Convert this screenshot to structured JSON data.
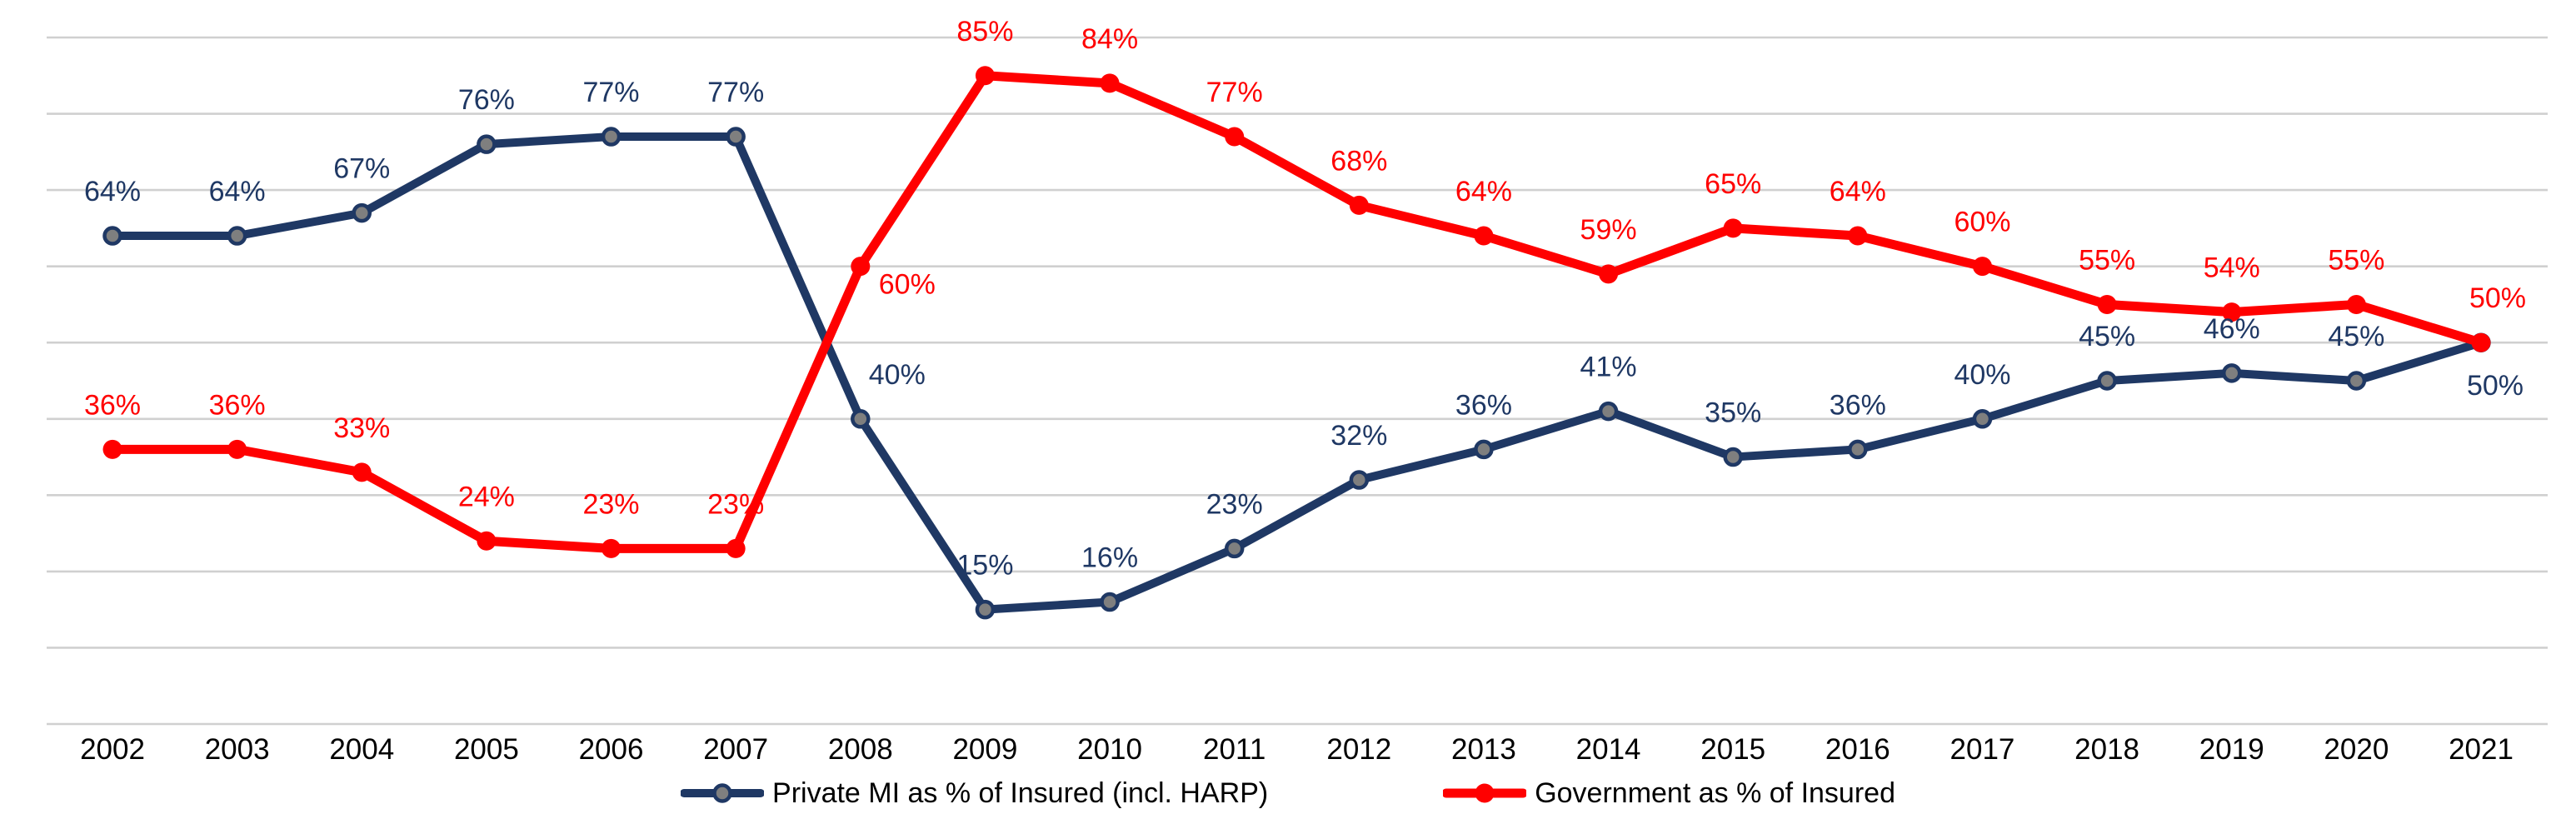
{
  "chart_data": {
    "type": "line",
    "title": "",
    "x_categories": [
      "2002",
      "2003",
      "2004",
      "2005",
      "2006",
      "2007",
      "2008",
      "2009",
      "2010",
      "2011",
      "2012",
      "2013",
      "2014",
      "2015",
      "2016",
      "2017",
      "2018",
      "2019",
      "2020",
      "2021"
    ],
    "series": [
      {
        "key": "private-mi",
        "name": "Private MI as % of Insured (incl. HARP)",
        "color": "#1F3864",
        "label_color": "#1F3864",
        "marker_fill": "#7F7F7F",
        "marker_stroke": "#1F3864",
        "values": [
          64,
          64,
          67,
          76,
          77,
          77,
          40,
          15,
          16,
          23,
          32,
          36,
          41,
          35,
          36,
          40,
          45,
          46,
          45,
          50
        ],
        "label_offsets": {
          "6": {
            "dx": 44
          },
          "19": {
            "dx": 17,
            "dy": 63
          }
        }
      },
      {
        "key": "government",
        "name": "Government as % of Insured",
        "color": "#FF0000",
        "label_color": "#FF0000",
        "marker_fill": "#FF0000",
        "marker_stroke": "#FF0000",
        "values": [
          36,
          36,
          33,
          24,
          23,
          23,
          60,
          85,
          84,
          77,
          68,
          64,
          59,
          65,
          64,
          60,
          55,
          54,
          55,
          50
        ],
        "label_offsets": {
          "6": {
            "dx": 56,
            "dy": 33
          },
          "19": {
            "dx": 20
          }
        }
      }
    ],
    "ylim": [
      0,
      90
    ],
    "grid_step": 10,
    "grid": "horizontal",
    "grid_color": "#D0D0D0",
    "axis_text_color": "#000000",
    "background": "#FFFFFF",
    "data_label_suffix": "%",
    "legend_position": "bottom",
    "y_axis_labels_visible": false
  }
}
